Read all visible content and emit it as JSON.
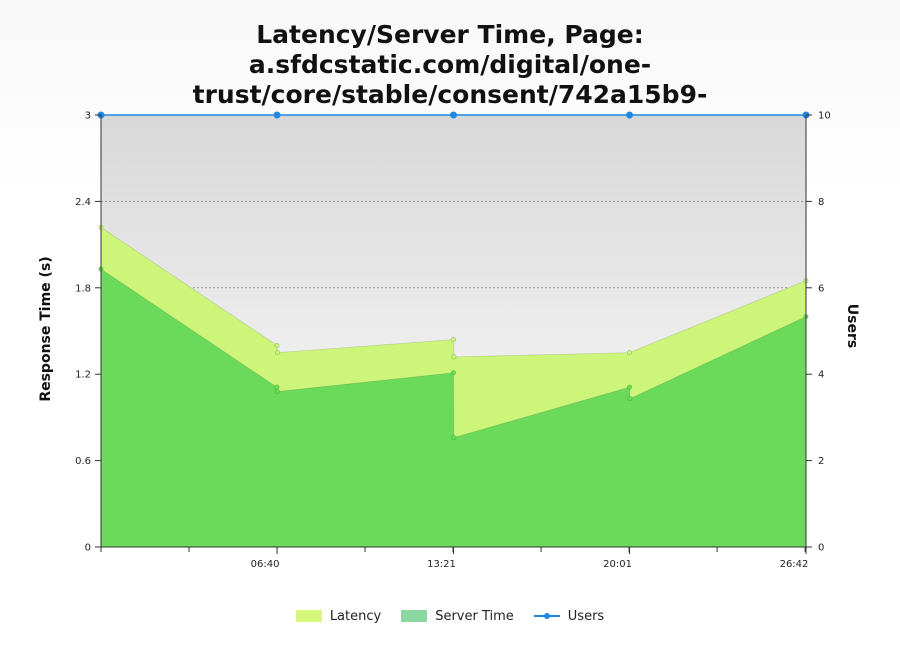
{
  "chart_data": {
    "type": "area",
    "title": "Latency/Server Time, Page: a.sfdcstatic.com/digital/one-trust/core/stable/consent/742a15b9-",
    "ylabel": "Response Time (s)",
    "y2label": "Users",
    "ylim": [
      0,
      3
    ],
    "y2lim": [
      0,
      10
    ],
    "yticks": [
      "0",
      "0.6",
      "1.2",
      "1.8",
      "2.4",
      "3"
    ],
    "y2ticks": [
      "0",
      "2",
      "4",
      "6",
      "8",
      "10"
    ],
    "xticks": [
      {
        "label": "06:40",
        "t": 400
      },
      {
        "label": "13:21",
        "t": 801
      },
      {
        "label": "20:01",
        "t": 1201
      },
      {
        "label": "26:42",
        "t": 1602
      }
    ],
    "xlim": [
      0,
      1602
    ],
    "grid": true,
    "legend_position": "bottom",
    "series": [
      {
        "name": "Latency",
        "color": "#ccf57a",
        "points": [
          [
            0,
            2.22
          ],
          [
            400,
            1.4
          ],
          [
            401,
            1.35
          ],
          [
            801,
            1.44
          ],
          [
            802,
            1.32
          ],
          [
            1201,
            1.35
          ],
          [
            1602,
            1.85
          ]
        ]
      },
      {
        "name": "Server Time",
        "color": "#6bd95a",
        "points": [
          [
            0,
            1.93
          ],
          [
            400,
            1.11
          ],
          [
            401,
            1.08
          ],
          [
            801,
            1.21
          ],
          [
            802,
            0.76
          ],
          [
            1201,
            1.11
          ],
          [
            1202,
            1.03
          ],
          [
            1602,
            1.6
          ]
        ]
      },
      {
        "name": "Users",
        "color": "#1e88e5",
        "points": [
          [
            0,
            10
          ],
          [
            400,
            10
          ],
          [
            801,
            10
          ],
          [
            1201,
            10
          ],
          [
            1602,
            10
          ]
        ]
      }
    ]
  },
  "legend": {
    "latency_label": "Latency",
    "server_time_label": "Server Time",
    "users_label": "Users"
  },
  "colors": {
    "latency": "#d4f77c",
    "server_time": "#8ad8a0",
    "users": "#1e88e5"
  }
}
